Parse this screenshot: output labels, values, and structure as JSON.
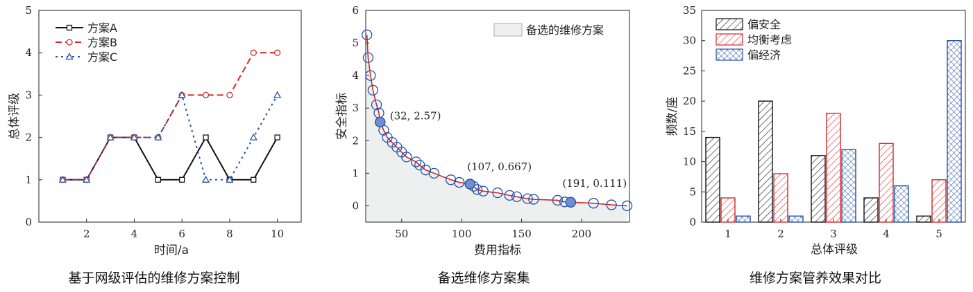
{
  "chart_data": [
    {
      "type": "line",
      "title": "",
      "caption": "基于网级评估的维修方案控制",
      "xlabel": "时间/a",
      "ylabel": "总体评级",
      "xlim": [
        0,
        11
      ],
      "ylim": [
        0,
        5
      ],
      "xticks": [
        "2",
        "4",
        "6",
        "8",
        "10"
      ],
      "yticks": [
        "0",
        "1",
        "2",
        "3",
        "4",
        "5"
      ],
      "legend": "top-left",
      "series": [
        {
          "name": "方案A",
          "color": "#111111",
          "style": "solid",
          "x": [
            1,
            2,
            3,
            4,
            5,
            6,
            7,
            8,
            9,
            10
          ],
          "values": [
            1,
            1,
            2,
            2,
            1,
            1,
            2,
            1,
            1,
            2
          ]
        },
        {
          "name": "方案B",
          "color": "#d62728",
          "style": "dashed",
          "x": [
            1,
            2,
            3,
            4,
            5,
            6,
            7,
            8,
            9,
            10
          ],
          "values": [
            1,
            1,
            2,
            2,
            2,
            3,
            3,
            3,
            4,
            4
          ]
        },
        {
          "name": "方案C",
          "color": "#2350a8",
          "style": "dotted",
          "x": [
            1,
            2,
            3,
            4,
            5,
            6,
            7,
            8,
            9,
            10
          ],
          "values": [
            1,
            1,
            2,
            2,
            2,
            3,
            1,
            1,
            2,
            3
          ]
        }
      ]
    },
    {
      "type": "scatter",
      "title": "",
      "caption": "备选维修方案集",
      "xlabel": "费用指标",
      "ylabel": "安全指标",
      "xlim": [
        20,
        240
      ],
      "ylim": [
        -0.5,
        6
      ],
      "xticks": [
        "50",
        "100",
        "150",
        "200"
      ],
      "yticks": [
        "0",
        "1",
        "2",
        "3",
        "4",
        "5",
        "6"
      ],
      "legend_label": "备选的维修方案",
      "legend": "top-right",
      "curve_color": "#d62728",
      "point_color": "#2350a8",
      "points": [
        [
          21,
          5.25
        ],
        [
          22,
          4.55
        ],
        [
          24,
          4.0
        ],
        [
          26,
          3.55
        ],
        [
          29,
          3.1
        ],
        [
          31,
          2.85
        ],
        [
          32,
          2.57
        ],
        [
          35,
          2.32
        ],
        [
          38,
          2.1
        ],
        [
          42,
          1.95
        ],
        [
          46,
          1.8
        ],
        [
          50,
          1.65
        ],
        [
          54,
          1.5
        ],
        [
          62,
          1.35
        ],
        [
          65,
          1.25
        ],
        [
          70,
          1.1
        ],
        [
          77,
          1.0
        ],
        [
          91,
          0.8
        ],
        [
          98,
          0.72
        ],
        [
          107,
          0.667
        ],
        [
          110,
          0.6
        ],
        [
          113,
          0.5
        ],
        [
          118,
          0.45
        ],
        [
          130,
          0.4
        ],
        [
          140,
          0.32
        ],
        [
          146,
          0.28
        ],
        [
          155,
          0.22
        ],
        [
          160,
          0.2
        ],
        [
          180,
          0.17
        ],
        [
          186,
          0.12
        ],
        [
          191,
          0.111
        ],
        [
          210,
          0.08
        ],
        [
          225,
          0.03
        ],
        [
          238,
          0.0
        ]
      ],
      "highlighted": [
        {
          "x": 32,
          "y": 2.57,
          "label": "(32, 2.57)"
        },
        {
          "x": 107,
          "y": 0.667,
          "label": "(107, 0.667)"
        },
        {
          "x": 191,
          "y": 0.111,
          "label": "(191, 0.111)"
        }
      ]
    },
    {
      "type": "bar",
      "title": "",
      "caption": "维修方案管养效果对比",
      "xlabel": "总体评级",
      "ylabel": "频数/座",
      "categories": [
        "1",
        "2",
        "3",
        "4",
        "5"
      ],
      "ylim": [
        0,
        35
      ],
      "yticks": [
        "0",
        "5",
        "10",
        "15",
        "20",
        "25",
        "30",
        "35"
      ],
      "legend": "top-left",
      "series": [
        {
          "name": "偏安全",
          "color": "#111111",
          "pattern": "diagonal",
          "values": [
            14,
            20,
            11,
            4,
            1
          ]
        },
        {
          "name": "均衡考虑",
          "color": "#d62728",
          "pattern": "diagonal",
          "values": [
            4,
            8,
            18,
            13,
            7
          ]
        },
        {
          "name": "偏经济",
          "color": "#2350a8",
          "pattern": "crosshatch",
          "values": [
            1,
            1,
            12,
            6,
            30
          ]
        }
      ]
    }
  ]
}
